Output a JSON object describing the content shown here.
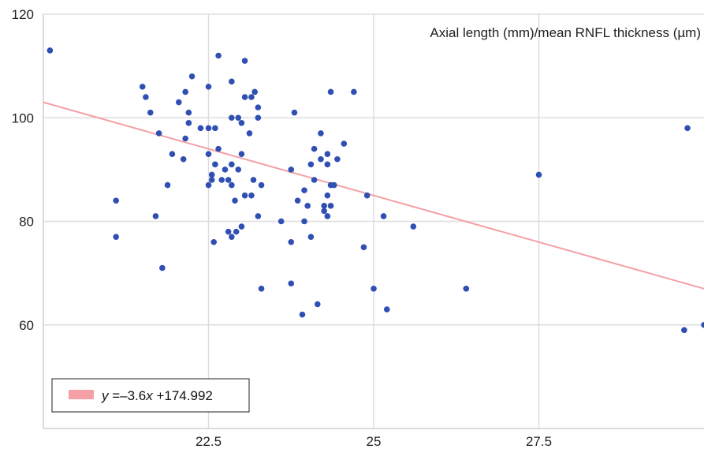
{
  "chart_data": {
    "type": "scatter",
    "title": "Axial length (mm)/mean RNFL thickness (µm)",
    "xlabel": "",
    "ylabel": "",
    "xlim": [
      20.0,
      30.0
    ],
    "ylim": [
      40,
      120
    ],
    "x_ticks": [
      "22.5",
      "25",
      "27.5"
    ],
    "y_ticks": [
      "60",
      "80",
      "100",
      "120"
    ],
    "grid": true,
    "point_color": "#2f4fb3",
    "points": [
      {
        "x": 20.1,
        "y": 113
      },
      {
        "x": 21.1,
        "y": 84
      },
      {
        "x": 21.1,
        "y": 77
      },
      {
        "x": 21.5,
        "y": 106
      },
      {
        "x": 21.55,
        "y": 104
      },
      {
        "x": 21.62,
        "y": 101
      },
      {
        "x": 21.75,
        "y": 97
      },
      {
        "x": 21.7,
        "y": 81
      },
      {
        "x": 21.8,
        "y": 71
      },
      {
        "x": 21.88,
        "y": 87
      },
      {
        "x": 21.95,
        "y": 93
      },
      {
        "x": 22.05,
        "y": 103
      },
      {
        "x": 22.15,
        "y": 105
      },
      {
        "x": 22.2,
        "y": 101
      },
      {
        "x": 22.2,
        "y": 99
      },
      {
        "x": 22.25,
        "y": 108
      },
      {
        "x": 22.15,
        "y": 96
      },
      {
        "x": 22.12,
        "y": 92
      },
      {
        "x": 22.38,
        "y": 98
      },
      {
        "x": 22.5,
        "y": 106
      },
      {
        "x": 22.5,
        "y": 98
      },
      {
        "x": 22.6,
        "y": 98
      },
      {
        "x": 22.65,
        "y": 112
      },
      {
        "x": 22.5,
        "y": 93
      },
      {
        "x": 22.5,
        "y": 87
      },
      {
        "x": 22.55,
        "y": 89
      },
      {
        "x": 22.55,
        "y": 88
      },
      {
        "x": 22.6,
        "y": 91
      },
      {
        "x": 22.65,
        "y": 94
      },
      {
        "x": 22.7,
        "y": 88
      },
      {
        "x": 22.58,
        "y": 76
      },
      {
        "x": 22.75,
        "y": 90
      },
      {
        "x": 22.8,
        "y": 88
      },
      {
        "x": 22.85,
        "y": 107
      },
      {
        "x": 22.85,
        "y": 100
      },
      {
        "x": 22.85,
        "y": 91
      },
      {
        "x": 22.85,
        "y": 87
      },
      {
        "x": 22.8,
        "y": 78
      },
      {
        "x": 22.85,
        "y": 77
      },
      {
        "x": 22.9,
        "y": 84
      },
      {
        "x": 22.95,
        "y": 100
      },
      {
        "x": 22.95,
        "y": 90
      },
      {
        "x": 22.92,
        "y": 78
      },
      {
        "x": 23.0,
        "y": 99
      },
      {
        "x": 23.0,
        "y": 93
      },
      {
        "x": 23.05,
        "y": 111
      },
      {
        "x": 23.05,
        "y": 104
      },
      {
        "x": 23.05,
        "y": 85
      },
      {
        "x": 23.0,
        "y": 79
      },
      {
        "x": 23.15,
        "y": 104
      },
      {
        "x": 23.12,
        "y": 97
      },
      {
        "x": 23.15,
        "y": 85
      },
      {
        "x": 23.18,
        "y": 88
      },
      {
        "x": 23.2,
        "y": 105
      },
      {
        "x": 23.25,
        "y": 102
      },
      {
        "x": 23.25,
        "y": 100
      },
      {
        "x": 23.3,
        "y": 87
      },
      {
        "x": 23.25,
        "y": 81
      },
      {
        "x": 23.3,
        "y": 67
      },
      {
        "x": 23.6,
        "y": 80
      },
      {
        "x": 23.75,
        "y": 90
      },
      {
        "x": 23.75,
        "y": 76
      },
      {
        "x": 23.75,
        "y": 68
      },
      {
        "x": 23.8,
        "y": 101
      },
      {
        "x": 23.85,
        "y": 84
      },
      {
        "x": 23.95,
        "y": 86
      },
      {
        "x": 23.95,
        "y": 80
      },
      {
        "x": 24.0,
        "y": 83
      },
      {
        "x": 23.92,
        "y": 62
      },
      {
        "x": 24.05,
        "y": 91
      },
      {
        "x": 24.05,
        "y": 77
      },
      {
        "x": 24.1,
        "y": 94
      },
      {
        "x": 24.1,
        "y": 88
      },
      {
        "x": 24.15,
        "y": 64
      },
      {
        "x": 24.2,
        "y": 97
      },
      {
        "x": 24.2,
        "y": 92
      },
      {
        "x": 24.25,
        "y": 83
      },
      {
        "x": 24.25,
        "y": 82
      },
      {
        "x": 24.3,
        "y": 91
      },
      {
        "x": 24.3,
        "y": 93
      },
      {
        "x": 24.3,
        "y": 85
      },
      {
        "x": 24.3,
        "y": 81
      },
      {
        "x": 24.35,
        "y": 105
      },
      {
        "x": 24.35,
        "y": 87
      },
      {
        "x": 24.4,
        "y": 87
      },
      {
        "x": 24.35,
        "y": 83
      },
      {
        "x": 24.45,
        "y": 92
      },
      {
        "x": 24.55,
        "y": 95
      },
      {
        "x": 24.7,
        "y": 105
      },
      {
        "x": 24.85,
        "y": 75
      },
      {
        "x": 24.9,
        "y": 85
      },
      {
        "x": 25.0,
        "y": 67
      },
      {
        "x": 25.15,
        "y": 81
      },
      {
        "x": 25.2,
        "y": 63
      },
      {
        "x": 25.6,
        "y": 79
      },
      {
        "x": 26.4,
        "y": 67
      },
      {
        "x": 27.5,
        "y": 89
      },
      {
        "x": 29.75,
        "y": 98
      },
      {
        "x": 29.7,
        "y": 59
      },
      {
        "x": 30.0,
        "y": 60
      }
    ],
    "regression_line": {
      "slope": -3.6,
      "intercept": 174.992,
      "color": "#f4a0a6"
    },
    "legend": {
      "placement": "bottom-left",
      "label_y": "y",
      "label_rest": " =–3.6",
      "label_x": "x",
      "label_tail": " +174.992"
    }
  }
}
